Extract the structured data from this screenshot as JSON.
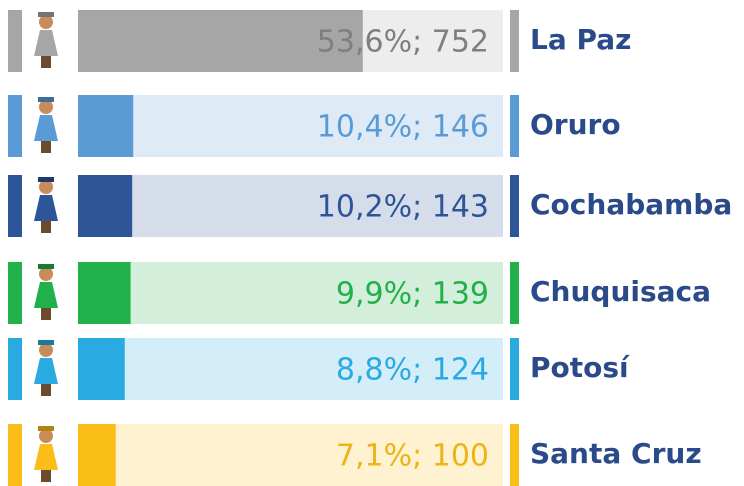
{
  "chart_data": {
    "type": "bar",
    "categories": [
      "La Paz",
      "Oruro",
      "Cochabamba",
      "Chuquisaca",
      "Potosí",
      "Santa Cruz"
    ],
    "values": [
      53.6,
      10.4,
      10.2,
      9.9,
      8.8,
      7.1
    ],
    "counts": [
      752,
      146,
      143,
      139,
      124,
      100
    ],
    "value_labels": [
      "53,6%; 752",
      "10,4%; 146",
      "10,2%; 143",
      "9,9%; 139",
      "8,8%; 124",
      "7,1%; 100"
    ],
    "colors": [
      "#a6a6a6",
      "#5b9bd5",
      "#2e5597",
      "#22b04b",
      "#29aae1",
      "#fbbd18"
    ],
    "xlim": [
      0,
      80
    ]
  }
}
